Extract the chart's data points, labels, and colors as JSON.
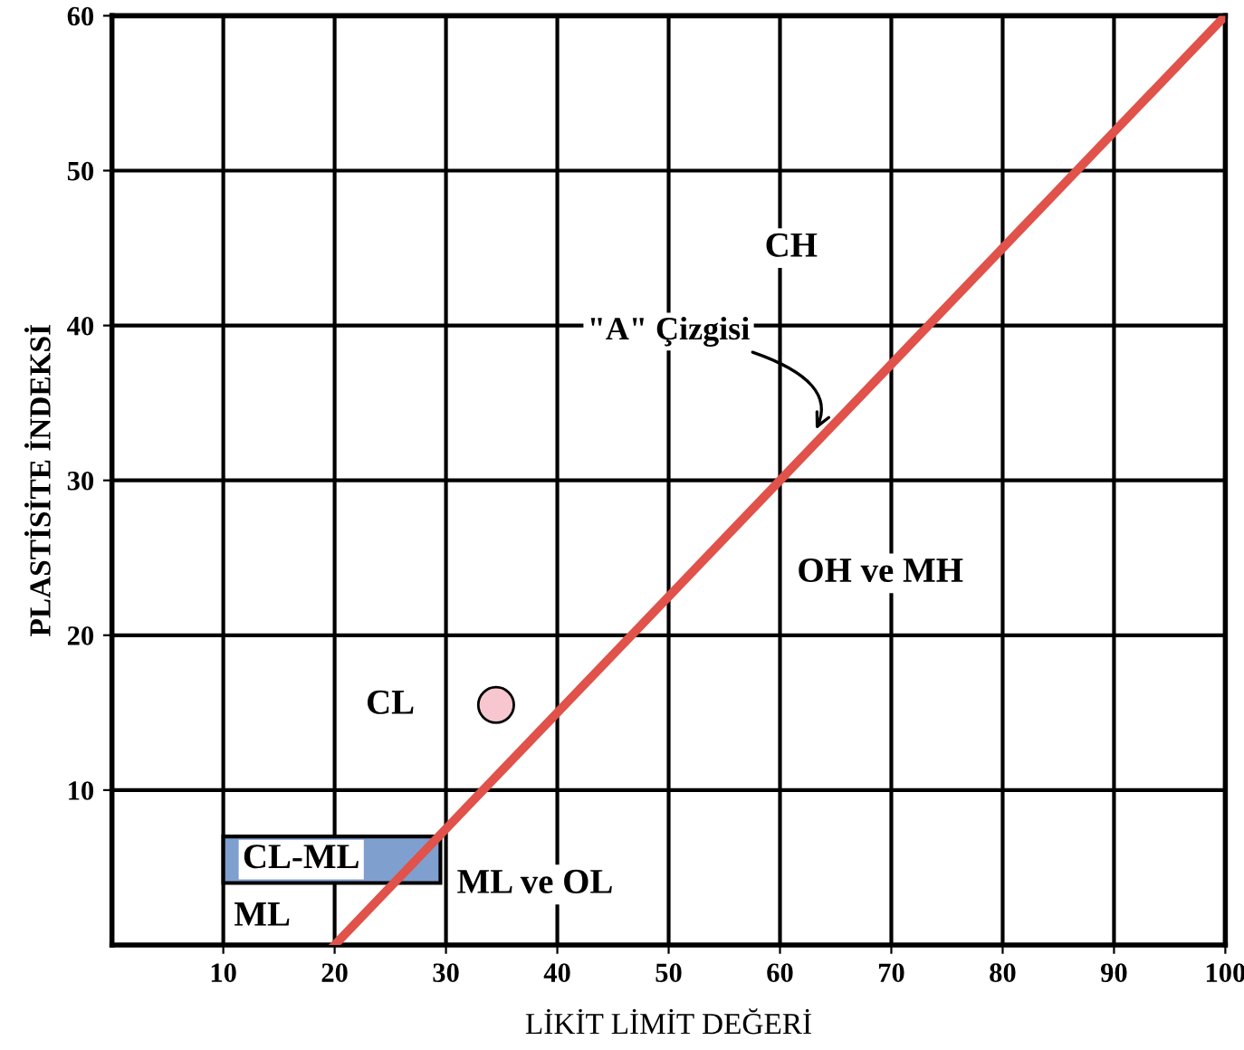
{
  "chart_data": {
    "type": "line",
    "xlabel": "LİKİT LİMİT DEĞERİ",
    "ylabel": "PLASTİSİTE İNDEKSİ",
    "series": [
      {
        "color": "#e0524a",
        "x": [
          20,
          100
        ],
        "values": [
          0,
          60
        ]
      },
      {
        "type": "scatter",
        "color": "#f7c6cf",
        "x": [
          34.5
        ],
        "values": [
          15.5
        ]
      }
    ],
    "xlim": [
      0,
      100
    ],
    "ylim": [
      0,
      60
    ],
    "xticks": [
      10,
      20,
      30,
      40,
      50,
      60,
      70,
      80,
      90,
      100
    ],
    "yticks": [
      10,
      20,
      30,
      40,
      50,
      60
    ],
    "grid": true,
    "annotations": [
      "CH",
      {
        "text": "\"A\" Çizgisi",
        "x": 63,
        "y": 33
      },
      "OH ve MH",
      "CL",
      "CL-ML",
      "ML",
      "ML ve OL"
    ]
  }
}
